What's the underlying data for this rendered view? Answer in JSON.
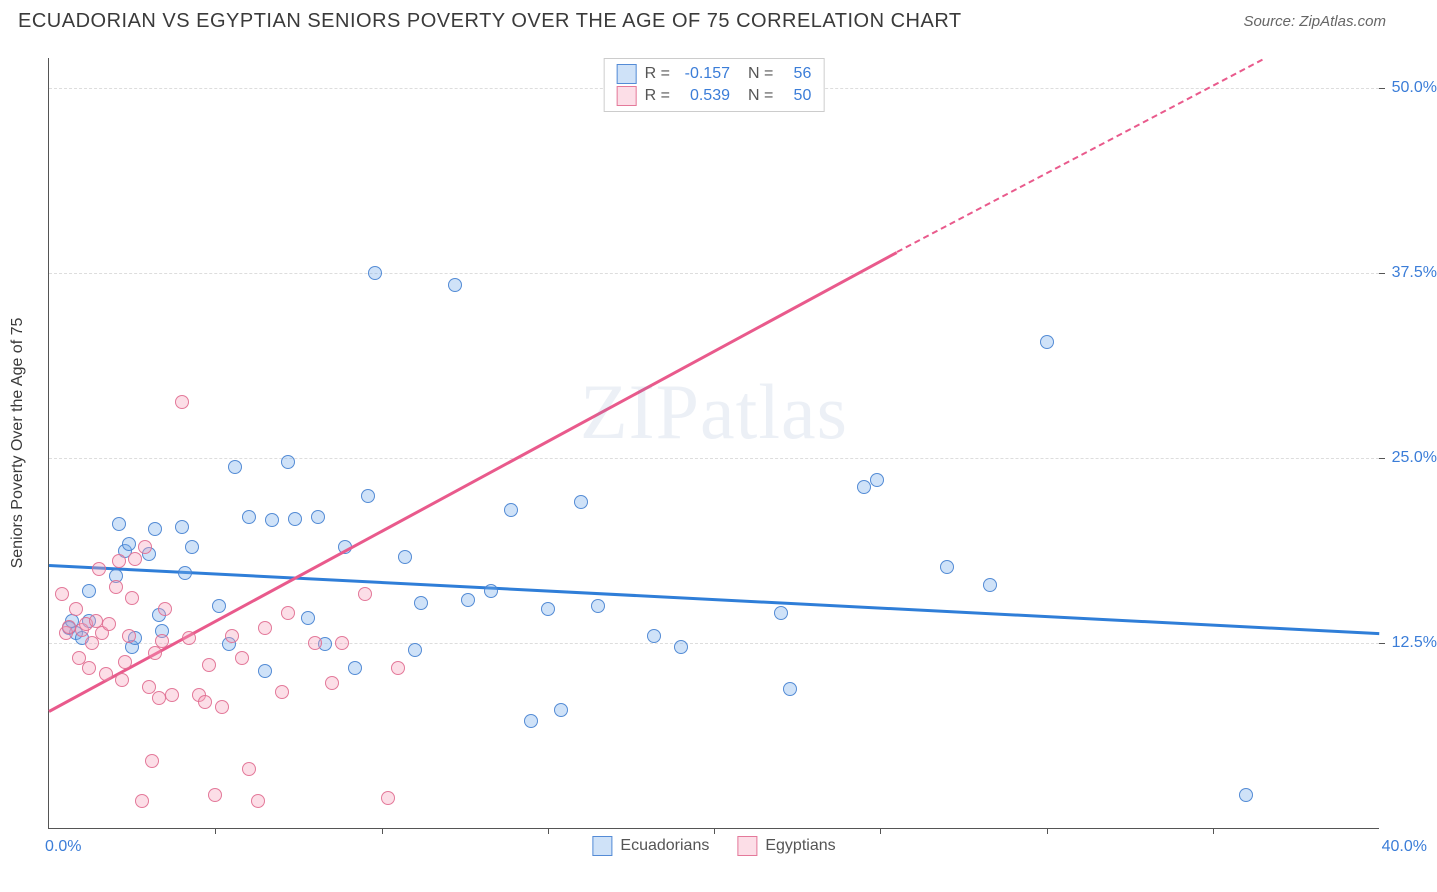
{
  "header": {
    "title": "ECUADORIAN VS EGYPTIAN SENIORS POVERTY OVER THE AGE OF 75 CORRELATION CHART",
    "source": "Source: ZipAtlas.com"
  },
  "chart": {
    "type": "scatter",
    "y_axis_title": "Seniors Poverty Over the Age of 75",
    "watermark": "ZIPatlas",
    "xlim": [
      0,
      40
    ],
    "ylim": [
      0,
      52
    ],
    "x_tick_label_left": "0.0%",
    "x_tick_label_right": "40.0%",
    "x_tick_positions": [
      5,
      10,
      15,
      20,
      25,
      30,
      35
    ],
    "y_grid": [
      {
        "value": 12.5,
        "label": "12.5%"
      },
      {
        "value": 25.0,
        "label": "25.0%"
      },
      {
        "value": 37.5,
        "label": "37.5%"
      },
      {
        "value": 50.0,
        "label": "50.0%"
      }
    ],
    "grid_color": "#dddddd",
    "background": "#ffffff",
    "series": [
      {
        "name": "Ecuadorians",
        "fill": "rgba(118,171,235,0.35)",
        "stroke": "rgba(70,130,210,0.9)",
        "trend_color": "#2f7ed8",
        "trend": {
          "x1": 0,
          "y1": 17.8,
          "x2": 40,
          "y2": 13.2
        },
        "R": "-0.157",
        "N": "56",
        "points": [
          [
            0.6,
            13.5
          ],
          [
            0.7,
            14.0
          ],
          [
            0.8,
            13.2
          ],
          [
            1.0,
            12.8
          ],
          [
            1.2,
            16.0
          ],
          [
            1.2,
            14.0
          ],
          [
            2.0,
            17.0
          ],
          [
            2.1,
            20.5
          ],
          [
            2.3,
            18.7
          ],
          [
            2.4,
            19.2
          ],
          [
            2.5,
            12.2
          ],
          [
            2.6,
            12.8
          ],
          [
            3.0,
            18.5
          ],
          [
            3.2,
            20.2
          ],
          [
            3.3,
            14.4
          ],
          [
            3.4,
            13.3
          ],
          [
            4.0,
            20.3
          ],
          [
            4.1,
            17.2
          ],
          [
            4.3,
            19.0
          ],
          [
            5.1,
            15.0
          ],
          [
            5.4,
            12.4
          ],
          [
            5.6,
            24.4
          ],
          [
            6.0,
            21.0
          ],
          [
            6.5,
            10.6
          ],
          [
            6.7,
            20.8
          ],
          [
            7.2,
            24.7
          ],
          [
            7.4,
            20.9
          ],
          [
            7.8,
            14.2
          ],
          [
            8.1,
            21.0
          ],
          [
            8.3,
            12.4
          ],
          [
            8.9,
            19.0
          ],
          [
            9.2,
            10.8
          ],
          [
            9.6,
            22.4
          ],
          [
            9.8,
            37.5
          ],
          [
            10.7,
            18.3
          ],
          [
            11.0,
            12.0
          ],
          [
            11.2,
            15.2
          ],
          [
            12.2,
            36.7
          ],
          [
            12.6,
            15.4
          ],
          [
            13.3,
            16.0
          ],
          [
            13.9,
            21.5
          ],
          [
            14.5,
            7.2
          ],
          [
            15.0,
            14.8
          ],
          [
            15.4,
            8.0
          ],
          [
            16.0,
            22.0
          ],
          [
            16.5,
            15.0
          ],
          [
            18.2,
            13.0
          ],
          [
            19.0,
            12.2
          ],
          [
            22.0,
            14.5
          ],
          [
            22.3,
            9.4
          ],
          [
            24.5,
            23.0
          ],
          [
            24.9,
            23.5
          ],
          [
            27.0,
            17.6
          ],
          [
            28.3,
            16.4
          ],
          [
            30.0,
            32.8
          ],
          [
            36.0,
            2.2
          ]
        ]
      },
      {
        "name": "Egyptians",
        "fill": "rgba(245,160,185,0.35)",
        "stroke": "rgba(225,110,145,0.9)",
        "trend_color": "#e95a8c",
        "trend": {
          "x1": 0,
          "y1": 8.0,
          "x2": 25.5,
          "y2": 39.0
        },
        "trend_dash": {
          "x1": 25.5,
          "y1": 39.0,
          "x2": 36.5,
          "y2": 52.0
        },
        "R": "0.539",
        "N": "50",
        "points": [
          [
            0.4,
            15.8
          ],
          [
            0.5,
            13.2
          ],
          [
            0.6,
            13.6
          ],
          [
            0.8,
            14.8
          ],
          [
            0.9,
            11.5
          ],
          [
            1.0,
            13.4
          ],
          [
            1.1,
            13.8
          ],
          [
            1.2,
            10.8
          ],
          [
            1.3,
            12.5
          ],
          [
            1.4,
            14.0
          ],
          [
            1.5,
            17.5
          ],
          [
            1.6,
            13.2
          ],
          [
            1.7,
            10.4
          ],
          [
            1.8,
            13.8
          ],
          [
            2.0,
            16.3
          ],
          [
            2.1,
            18.0
          ],
          [
            2.2,
            10.0
          ],
          [
            2.3,
            11.2
          ],
          [
            2.4,
            13.0
          ],
          [
            2.5,
            15.5
          ],
          [
            2.6,
            18.2
          ],
          [
            2.8,
            1.8
          ],
          [
            2.9,
            19.0
          ],
          [
            3.0,
            9.5
          ],
          [
            3.1,
            4.5
          ],
          [
            3.2,
            11.8
          ],
          [
            3.3,
            8.8
          ],
          [
            3.4,
            12.6
          ],
          [
            3.5,
            14.8
          ],
          [
            3.7,
            9.0
          ],
          [
            4.0,
            28.8
          ],
          [
            4.2,
            12.8
          ],
          [
            4.5,
            9.0
          ],
          [
            4.7,
            8.5
          ],
          [
            4.8,
            11.0
          ],
          [
            5.0,
            2.2
          ],
          [
            5.2,
            8.2
          ],
          [
            5.5,
            13.0
          ],
          [
            5.8,
            11.5
          ],
          [
            6.0,
            4.0
          ],
          [
            6.3,
            1.8
          ],
          [
            6.5,
            13.5
          ],
          [
            7.0,
            9.2
          ],
          [
            7.2,
            14.5
          ],
          [
            8.0,
            12.5
          ],
          [
            8.5,
            9.8
          ],
          [
            8.8,
            12.5
          ],
          [
            9.5,
            15.8
          ],
          [
            10.2,
            2.0
          ],
          [
            10.5,
            10.8
          ]
        ]
      }
    ],
    "marker_radius": 7,
    "line_width": 3,
    "legend_top": {
      "r_label": "R =",
      "n_label": "N ="
    }
  }
}
